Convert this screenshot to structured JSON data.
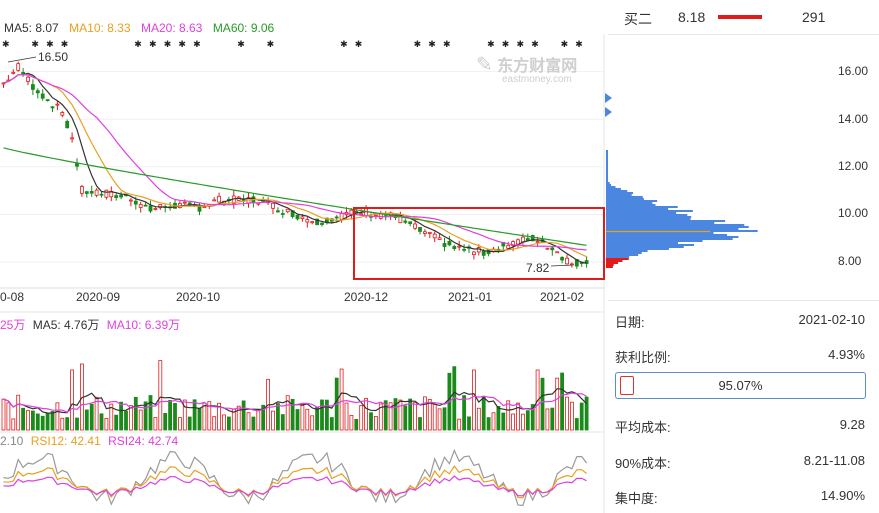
{
  "chart_data": {
    "type": "candlestick",
    "ma_legend": {
      "ma5": "MA5: 8.07",
      "ma10": "MA10: 8.33",
      "ma20": "MA20: 8.63",
      "ma60": "MA60: 9.06"
    },
    "x_ticks": [
      "0-08",
      "2020-09",
      "2020-10",
      "2020-12",
      "2021-01",
      "2021-02"
    ],
    "y_ticks": [
      "16.00",
      "14.00",
      "12.00",
      "10.00",
      "8.00"
    ],
    "annotations": {
      "high": "16.50",
      "low": "7.82"
    },
    "watermark": {
      "cn": "东方财富网",
      "en": "eastmoney.com"
    },
    "volume_legend": {
      "prefix": "25万",
      "ma5": "MA5: 4.76万",
      "ma10": "MA10: 6.39万"
    },
    "rsi_legend": {
      "prefix": "2.10",
      "rsi12": "RSI12: 42.41",
      "rsi24": "RSI24: 42.74"
    },
    "colors": {
      "up": "#e01b1b",
      "down": "#1a8a1a",
      "ma5": "#333333",
      "ma10": "#e8a020",
      "ma20": "#e040e0",
      "ma60": "#2a9a2a",
      "highlight": "#e01b1b",
      "profile": "#4b86e0"
    }
  },
  "order_book": {
    "label": "买二",
    "price": "8.18",
    "volume": "291"
  },
  "cost_info": {
    "date_label": "日期:",
    "date_value": "2021-02-10",
    "profit_label": "获利比例:",
    "profit_value": "4.93%",
    "profit_bar_text": "95.07%",
    "profit_fraction": 0.0493,
    "avg_label": "平均成本:",
    "avg_value": "9.28",
    "cost90_label": "90%成本:",
    "cost90_value": "8.21-11.08",
    "concentration_label": "集中度:",
    "concentration_value": "14.90%"
  }
}
